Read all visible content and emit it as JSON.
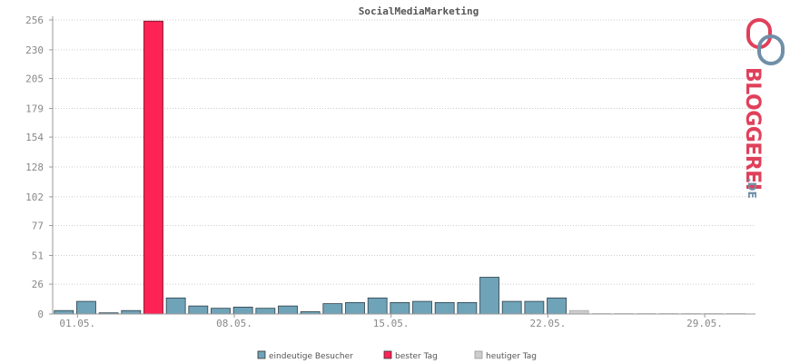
{
  "chart_data": {
    "type": "bar",
    "title": "SocialMediaMarketing",
    "xlabel": "",
    "ylabel": "",
    "ylim": [
      0,
      256
    ],
    "y_ticks": [
      "0",
      "26",
      "51",
      "77",
      "102",
      "128",
      "154",
      "179",
      "205",
      "230",
      "256"
    ],
    "x_ticks": [
      {
        "day": 1,
        "label": "01.05."
      },
      {
        "day": 8,
        "label": "08.05."
      },
      {
        "day": 15,
        "label": "15.05."
      },
      {
        "day": 22,
        "label": "22.05."
      },
      {
        "day": 29,
        "label": "29.05."
      }
    ],
    "days": 31,
    "grid": true,
    "series": [
      {
        "name": "eindeutige Besucher",
        "color": "#6fa3b8"
      },
      {
        "name": "bester Tag",
        "color": "#ff2255"
      },
      {
        "name": "heutiger Tag",
        "color": "#cccccc"
      }
    ],
    "values": [
      3,
      11,
      1,
      3,
      255,
      14,
      7,
      5,
      6,
      5,
      7,
      2,
      9,
      10,
      14,
      10,
      11,
      10,
      10,
      32,
      11,
      11,
      14,
      3,
      0,
      0,
      0,
      0,
      0,
      0,
      0
    ],
    "best_day": 5,
    "today": 24,
    "legend_placement": "bottom-center"
  },
  "logo": {
    "text_main": "BLOGGEREI",
    "text_tld": ".DE",
    "colors": {
      "red": "#e0405a",
      "blue": "#6f8fa8",
      "dark": "#4a5f74"
    }
  }
}
